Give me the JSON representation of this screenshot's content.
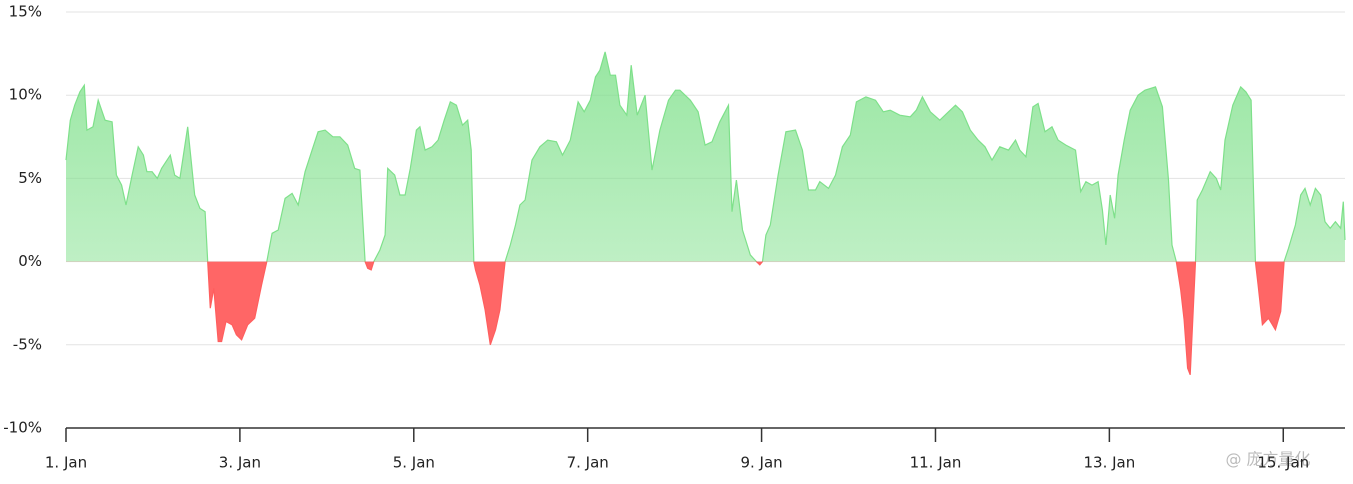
{
  "chart_data": {
    "type": "area",
    "watermark": "@ 庞方量化",
    "positive_color": "#7ee08a",
    "negative_color": "#ff5e5e",
    "xlim": [
      1,
      15.71
    ],
    "ylim": [
      -10,
      15
    ],
    "xticks": [
      {
        "value": 1,
        "label": "1. Jan"
      },
      {
        "value": 3,
        "label": "3. Jan"
      },
      {
        "value": 5,
        "label": "5. Jan"
      },
      {
        "value": 7,
        "label": "7. Jan"
      },
      {
        "value": 9,
        "label": "9. Jan"
      },
      {
        "value": 11,
        "label": "11. Jan"
      },
      {
        "value": 13,
        "label": "13. Jan"
      },
      {
        "value": 15,
        "label": "15. Jan"
      }
    ],
    "yticks": [
      {
        "value": -10,
        "label": "-10%"
      },
      {
        "value": -5,
        "label": "-5%"
      },
      {
        "value": 0,
        "label": "0%"
      },
      {
        "value": 5,
        "label": "5%"
      },
      {
        "value": 10,
        "label": "10%"
      },
      {
        "value": 15,
        "label": "15%"
      }
    ],
    "grid": true,
    "x": [
      1.0,
      1.05,
      1.1,
      1.16,
      1.21,
      1.24,
      1.31,
      1.37,
      1.45,
      1.53,
      1.58,
      1.64,
      1.69,
      1.76,
      1.83,
      1.89,
      1.93,
      1.99,
      2.05,
      2.1,
      2.2,
      2.25,
      2.31,
      2.4,
      2.48,
      2.54,
      2.6,
      2.63,
      2.66,
      2.7,
      2.75,
      2.79,
      2.84,
      2.91,
      2.96,
      3.02,
      3.09,
      3.17,
      3.25,
      3.31,
      3.37,
      3.44,
      3.52,
      3.6,
      3.67,
      3.75,
      3.83,
      3.9,
      3.98,
      4.07,
      4.15,
      4.24,
      4.32,
      4.38,
      4.44,
      4.47,
      4.51,
      4.54,
      4.61,
      4.67,
      4.7,
      4.78,
      4.84,
      4.9,
      4.96,
      5.03,
      5.07,
      5.13,
      5.21,
      5.28,
      5.35,
      5.42,
      5.49,
      5.56,
      5.62,
      5.66,
      5.69,
      5.71,
      5.76,
      5.82,
      5.88,
      5.94,
      5.99,
      6.05,
      6.11,
      6.17,
      6.22,
      6.28,
      6.36,
      6.45,
      6.54,
      6.64,
      6.71,
      6.8,
      6.89,
      6.96,
      7.03,
      7.09,
      7.14,
      7.2,
      7.26,
      7.32,
      7.37,
      7.45,
      7.5,
      7.57,
      7.66,
      7.74,
      7.83,
      7.93,
      8.01,
      8.06,
      8.18,
      8.27,
      8.35,
      8.43,
      8.52,
      8.62,
      8.66,
      8.71,
      8.78,
      8.87,
      8.94,
      8.98,
      9.01,
      9.05,
      9.1,
      9.19,
      9.28,
      9.39,
      9.47,
      9.54,
      9.62,
      9.67,
      9.77,
      9.85,
      9.93,
      10.02,
      10.09,
      10.2,
      10.31,
      10.4,
      10.48,
      10.59,
      10.71,
      10.78,
      10.85,
      10.94,
      11.05,
      11.15,
      11.23,
      11.31,
      11.4,
      11.49,
      11.57,
      11.65,
      11.74,
      11.84,
      11.92,
      11.97,
      12.04,
      12.12,
      12.18,
      12.26,
      12.34,
      12.41,
      12.5,
      12.61,
      12.67,
      12.73,
      12.8,
      12.87,
      12.92,
      12.96,
      13.01,
      13.06,
      13.1,
      13.17,
      13.24,
      13.33,
      13.41,
      13.53,
      13.61,
      13.68,
      13.72,
      13.77,
      13.82,
      13.86,
      13.9,
      13.93,
      13.97,
      13.99,
      14.01,
      14.07,
      14.16,
      14.23,
      14.28,
      14.33,
      14.42,
      14.51,
      14.57,
      14.63,
      14.68,
      14.71,
      14.76,
      14.83,
      14.91,
      14.97,
      15.01,
      15.06,
      15.14,
      15.2,
      15.25,
      15.31,
      15.37,
      15.43,
      15.48,
      15.54,
      15.6,
      15.66,
      15.69,
      15.71
    ],
    "values": [
      6.1,
      8.5,
      9.4,
      10.2,
      10.6,
      7.9,
      8.1,
      9.7,
      8.5,
      8.4,
      5.2,
      4.6,
      3.4,
      5.2,
      6.9,
      6.4,
      5.4,
      5.4,
      5.0,
      5.6,
      6.4,
      5.2,
      5.0,
      8.1,
      4.0,
      3.2,
      3.0,
      0,
      -2.8,
      -1.6,
      -4.8,
      -4.8,
      -3.6,
      -3.8,
      -4.4,
      -4.7,
      -3.8,
      -3.4,
      -1.4,
      0,
      1.7,
      1.9,
      3.8,
      4.1,
      3.4,
      5.4,
      6.7,
      7.8,
      7.9,
      7.5,
      7.5,
      7.0,
      5.6,
      5.5,
      0,
      -0.4,
      -0.5,
      0,
      0.7,
      1.6,
      5.6,
      5.2,
      4.0,
      4.0,
      5.6,
      7.9,
      8.1,
      6.7,
      6.9,
      7.3,
      8.5,
      9.6,
      9.4,
      8.2,
      8.5,
      6.7,
      0,
      -0.5,
      -1.4,
      -2.9,
      -5.0,
      -4.1,
      -2.9,
      0,
      1.0,
      2.2,
      3.4,
      3.7,
      6.1,
      6.9,
      7.3,
      7.2,
      6.4,
      7.3,
      9.6,
      9.0,
      9.7,
      11.1,
      11.5,
      12.6,
      11.2,
      11.2,
      9.4,
      8.8,
      11.8,
      8.8,
      10.0,
      5.5,
      7.9,
      9.7,
      10.3,
      10.3,
      9.7,
      9.0,
      7.0,
      7.2,
      8.4,
      9.4,
      3.0,
      4.9,
      1.9,
      0.4,
      0,
      -0.2,
      0,
      1.6,
      2.2,
      5.2,
      7.8,
      7.9,
      6.7,
      4.3,
      4.3,
      4.8,
      4.4,
      5.2,
      6.9,
      7.6,
      9.6,
      9.9,
      9.7,
      9.0,
      9.1,
      8.8,
      8.7,
      9.1,
      9.9,
      9.0,
      8.5,
      9.0,
      9.4,
      9.0,
      7.9,
      7.3,
      6.9,
      6.1,
      6.9,
      6.7,
      7.3,
      6.7,
      6.3,
      9.3,
      9.5,
      7.8,
      8.1,
      7.3,
      7.0,
      6.7,
      4.2,
      4.8,
      4.6,
      4.8,
      3.1,
      1.0,
      4.0,
      2.6,
      5.2,
      7.3,
      9.1,
      10.0,
      10.3,
      10.5,
      9.3,
      4.9,
      1.0,
      0,
      -1.7,
      -3.5,
      -6.4,
      -6.8,
      -2.3,
      0,
      3.7,
      4.3,
      5.4,
      5.0,
      4.3,
      7.3,
      9.4,
      10.5,
      10.2,
      9.7,
      0,
      -1.4,
      -3.8,
      -3.4,
      -4.1,
      -3.0,
      0,
      0.8,
      2.2,
      4.0,
      4.4,
      3.4,
      4.4,
      4.0,
      2.4,
      2.0,
      2.4,
      2.0,
      3.6,
      1.3
    ]
  }
}
